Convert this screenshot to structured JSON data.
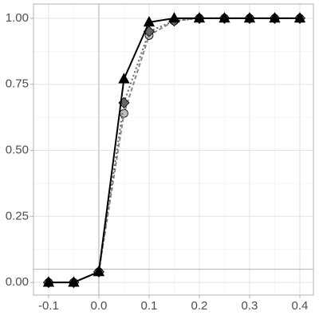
{
  "chart_data": {
    "type": "line",
    "x": [
      -0.1,
      -0.05,
      0,
      0.05,
      0.1,
      0.15,
      0.2,
      0.25,
      0.3,
      0.35,
      0.4
    ],
    "series": [
      {
        "color": "#bdbdbd",
        "marker": "circle",
        "line_color": "#888888",
        "dash": "5,3",
        "values": [
          0,
          0,
          0.04,
          0.64,
          0.935,
          0.99,
          1,
          1,
          1,
          1,
          1
        ]
      },
      {
        "color": "#666666",
        "marker": "diamond",
        "line_color": "#666666",
        "dash": "2,3",
        "values": [
          0,
          0,
          0.04,
          0.68,
          0.95,
          0.99,
          1,
          1,
          1,
          1,
          1
        ]
      },
      {
        "color": "#000000",
        "marker": "triangle",
        "line_color": "#000000",
        "dash": "none",
        "values": [
          0,
          0,
          0.04,
          0.77,
          0.985,
          1,
          1,
          1,
          1,
          1,
          1
        ]
      }
    ],
    "xlim": [
      -0.13,
      0.427
    ],
    "ylim": [
      -0.048,
      1.054
    ],
    "xticks": [
      -0.1,
      {
        "value": 0,
        "label": "0.0"
      },
      0.1,
      0.2,
      0.3,
      0.4
    ],
    "yticks": [
      {
        "value": 0,
        "label": "0.00"
      },
      {
        "value": 0.25,
        "label": "0.25"
      },
      {
        "value": 0.5,
        "label": "0.50"
      },
      {
        "value": 0.75,
        "label": "0.75"
      },
      {
        "value": 1,
        "label": "1.00"
      }
    ],
    "grid": true,
    "hline": 0.05,
    "vline": 0
  }
}
